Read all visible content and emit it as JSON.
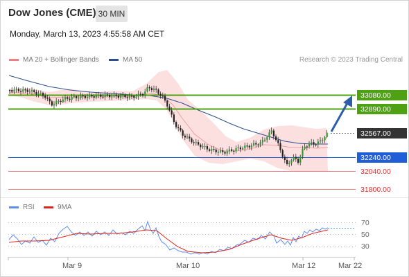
{
  "header": {
    "title": "Dow Jones (CME)",
    "interval": "30 MIN",
    "datetime": "Monday, March 13, 2023 4:55:58 AM CET"
  },
  "legend": {
    "bb_label": "MA 20 + Bollinger Bands",
    "bb_color": "#f08080",
    "ma50_label": "MA 50",
    "ma50_color": "#2c4f8c",
    "credit": "Research © 2023 Trading Central"
  },
  "rsi_legend": {
    "rsi_label": "RSI",
    "rsi_color": "#5b8def",
    "ma_label": "9MA",
    "ma_color": "#e0231b"
  },
  "price_levels": [
    {
      "label": "33080.00",
      "kind": "resistance",
      "color": "#4fa114"
    },
    {
      "label": "32890.00",
      "kind": "resistance",
      "color": "#4fa114"
    },
    {
      "label": "32567.00",
      "kind": "last",
      "color": "#333333"
    },
    {
      "label": "32240.00",
      "kind": "pivot",
      "color": "#1f5ed6"
    },
    {
      "label": "32040.00",
      "kind": "support",
      "color": "#e25050"
    },
    {
      "label": "31800.00",
      "kind": "support",
      "color": "#e25050"
    }
  ],
  "rsi_levels": [
    "70",
    "50",
    "30"
  ],
  "x_axis": {
    "labels": [
      "Mar 9",
      "Mar 10",
      "Mar 12",
      "Mar 22"
    ]
  },
  "forecast_arrow": {
    "direction": "up",
    "color": "#2c5ea8",
    "target": "33080.00"
  }
}
